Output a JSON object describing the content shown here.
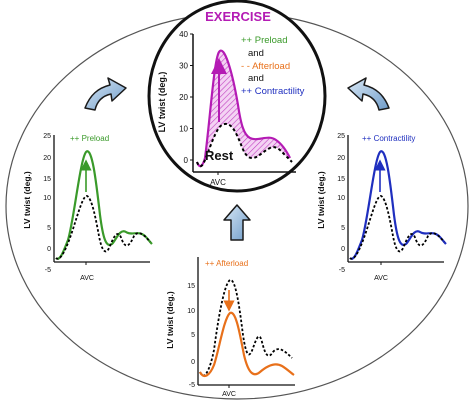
{
  "center": {
    "title": "EXERCISE",
    "ylabel": "LV twist (deg.)",
    "yticks": [
      "0",
      "10",
      "20",
      "30",
      "40"
    ],
    "xtick": "AVC",
    "rest_label": "Rest",
    "legend": {
      "preload": "++ Preload",
      "and1": "and",
      "afterload": "- - Afterload",
      "and2": "and",
      "contractility": "++ Contractility"
    }
  },
  "preload_panel": {
    "legend": "++ Preload",
    "ylabel": "LV twist (deg.)",
    "yticks": [
      "-5",
      "0",
      "5",
      "10",
      "15",
      "20",
      "25"
    ],
    "xtick": "AVC"
  },
  "afterload_panel": {
    "legend": "++ Afterload",
    "ylabel": "LV twist (deg.)",
    "yticks": [
      "-5",
      "0",
      "5",
      "10",
      "15"
    ],
    "xtick": "AVC"
  },
  "contractility_panel": {
    "legend": "++ Contractility",
    "ylabel": "LV twist (deg.)",
    "yticks": [
      "-5",
      "0",
      "5",
      "10",
      "15",
      "20",
      "25"
    ],
    "xtick": "AVC"
  },
  "colors": {
    "exercise_magenta": "#b41bb4",
    "hatch_fill": "#e59be5",
    "preload_green": "#3a9a2a",
    "afterload_orange": "#e8701a",
    "contractility_blue": "#1f2fbf",
    "arrow_blue": "#9fc0e0",
    "arrow_outline": "#1a1a1a",
    "oval_outline": "#555555",
    "rest_curve": "#000000"
  }
}
